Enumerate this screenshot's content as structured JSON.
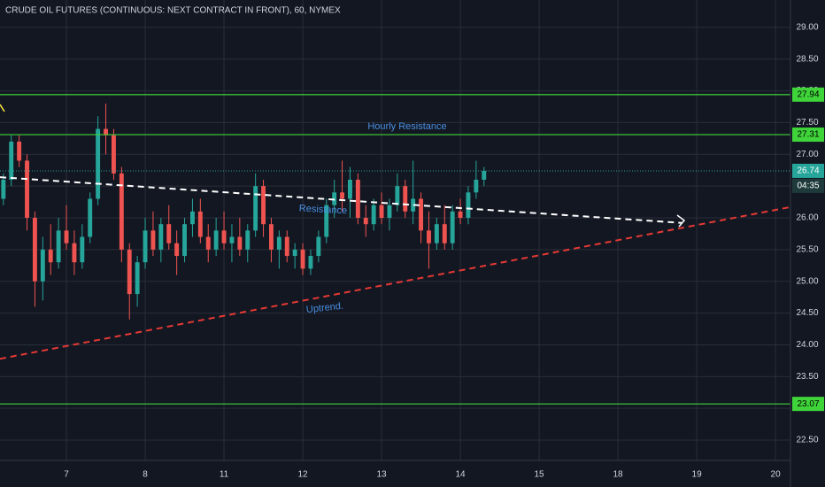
{
  "chart_data": {
    "type": "candlestick",
    "title": "CRUDE OIL FUTURES (CONTINUOUS: NEXT CONTRACT IN FRONT), 60, NYMEX",
    "x": [
      0.2,
      0.3,
      0.4,
      0.5,
      0.6,
      0.7,
      0.8,
      0.9,
      1.0,
      1.1,
      1.2,
      1.3,
      1.4,
      1.5,
      1.6,
      1.7,
      1.8,
      1.9,
      2.0,
      2.1,
      2.2,
      2.3,
      2.4,
      2.5,
      2.6,
      2.7,
      2.8,
      2.9,
      3.0,
      3.1,
      3.2,
      3.3,
      3.4,
      3.5,
      3.6,
      3.7,
      3.8,
      3.9,
      4.0,
      4.1,
      4.2,
      4.3,
      4.4,
      4.5,
      4.6,
      4.7,
      4.8,
      4.9,
      5.0,
      5.1,
      5.2,
      5.3,
      5.4,
      5.5,
      5.6,
      5.7,
      5.8,
      5.9,
      6.0,
      6.1,
      6.2,
      6.3
    ],
    "open": [
      26.3,
      26.6,
      27.2,
      26.9,
      26.0,
      25.0,
      25.5,
      25.3,
      25.8,
      25.6,
      25.3,
      25.7,
      26.3,
      27.4,
      27.3,
      26.7,
      25.5,
      24.8,
      25.3,
      25.8,
      25.5,
      25.9,
      25.6,
      25.4,
      25.9,
      26.1,
      25.7,
      25.5,
      25.8,
      25.6,
      25.7,
      25.5,
      25.8,
      26.5,
      25.9,
      25.5,
      25.7,
      25.4,
      25.5,
      25.2,
      25.4,
      25.7,
      26.2,
      26.4,
      26.3,
      26.6,
      26.0,
      25.9,
      26.2,
      26.0,
      26.2,
      26.5,
      26.1,
      26.3,
      25.8,
      25.6,
      25.9,
      25.6,
      26.1,
      26.0,
      26.4,
      26.6
    ],
    "high": [
      26.7,
      27.3,
      27.3,
      27.0,
      26.1,
      25.7,
      25.9,
      26.0,
      26.2,
      25.8,
      25.9,
      26.4,
      27.6,
      27.8,
      27.4,
      26.8,
      25.6,
      25.4,
      26.0,
      26.1,
      26.0,
      26.2,
      25.8,
      26.0,
      26.3,
      26.3,
      25.9,
      26.0,
      26.1,
      25.9,
      26.0,
      25.9,
      26.7,
      26.6,
      26.0,
      25.8,
      25.8,
      25.6,
      25.6,
      25.5,
      25.8,
      26.3,
      26.6,
      26.9,
      26.8,
      26.7,
      26.2,
      26.3,
      26.4,
      26.3,
      26.7,
      26.6,
      26.9,
      26.4,
      26.1,
      26.0,
      26.2,
      26.2,
      26.3,
      26.5,
      26.9,
      26.8
    ],
    "low": [
      26.2,
      26.5,
      26.8,
      25.8,
      24.6,
      24.7,
      25.1,
      25.2,
      25.5,
      25.1,
      25.2,
      25.6,
      26.2,
      27.0,
      26.6,
      25.3,
      24.4,
      24.6,
      25.2,
      25.4,
      25.3,
      25.5,
      25.1,
      25.3,
      25.7,
      25.6,
      25.3,
      25.4,
      25.5,
      25.3,
      25.4,
      25.3,
      25.7,
      25.7,
      25.3,
      25.2,
      25.3,
      25.2,
      25.1,
      25.1,
      25.3,
      25.6,
      26.0,
      26.1,
      26.0,
      25.9,
      25.7,
      25.8,
      25.9,
      25.8,
      26.1,
      26.0,
      25.9,
      25.6,
      25.2,
      25.5,
      25.5,
      25.5,
      25.9,
      25.9,
      26.3,
      26.5
    ],
    "close": [
      26.6,
      27.2,
      26.9,
      26.0,
      25.0,
      25.5,
      25.3,
      25.8,
      25.6,
      25.3,
      25.7,
      26.3,
      27.4,
      27.3,
      26.7,
      25.5,
      24.8,
      25.3,
      25.8,
      25.5,
      25.9,
      25.6,
      25.4,
      25.9,
      26.1,
      25.7,
      25.5,
      25.8,
      25.6,
      25.7,
      25.5,
      25.8,
      26.5,
      25.9,
      25.5,
      25.7,
      25.4,
      25.5,
      25.2,
      25.4,
      25.7,
      26.2,
      26.4,
      26.3,
      26.6,
      26.0,
      25.9,
      26.2,
      26.0,
      26.2,
      26.5,
      26.1,
      26.3,
      25.8,
      25.6,
      25.9,
      25.6,
      26.1,
      26.0,
      26.4,
      26.6,
      26.74
    ],
    "up_color": "#26a69a",
    "down_color": "#ef5350",
    "xlim": [
      0.157,
      10.19
    ],
    "xticks": [
      {
        "value": 1,
        "label": "7"
      },
      {
        "value": 2,
        "label": "8"
      },
      {
        "value": 3,
        "label": "11"
      },
      {
        "value": 4,
        "label": "12"
      },
      {
        "value": 5,
        "label": "13"
      },
      {
        "value": 6,
        "label": "14"
      },
      {
        "value": 7,
        "label": "15"
      },
      {
        "value": 8,
        "label": "18"
      },
      {
        "value": 9,
        "label": "19"
      },
      {
        "value": 10,
        "label": "20"
      }
    ],
    "ylim": [
      22.18,
      29.43
    ],
    "yticks": [
      {
        "value": 22.5,
        "label": "22.50"
      },
      {
        "value": 23,
        "label": "23.00"
      },
      {
        "value": 23.5,
        "label": "23.50"
      },
      {
        "value": 24,
        "label": "24.00"
      },
      {
        "value": 24.5,
        "label": "24.50"
      },
      {
        "value": 25,
        "label": "25.00"
      },
      {
        "value": 25.5,
        "label": "25.50"
      },
      {
        "value": 26,
        "label": "26.00"
      },
      {
        "value": 26.5,
        "label": "26.50"
      },
      {
        "value": 27,
        "label": "27.00"
      },
      {
        "value": 27.5,
        "label": "27.50"
      },
      {
        "value": 28,
        "label": "28.00"
      },
      {
        "value": 28.5,
        "label": "28.50"
      },
      {
        "value": 29,
        "label": "29.00"
      }
    ],
    "grid": true,
    "levels": [
      {
        "value": 27.94,
        "color": "#3fd43a"
      },
      {
        "value": 27.31,
        "color": "#3fd43a"
      },
      {
        "value": 23.07,
        "color": "#3fd43a"
      }
    ],
    "trendlines": [
      {
        "color": "#ffffff",
        "x": [
          0.157,
          8.81
        ],
        "y": [
          26.64,
          25.92
        ]
      },
      {
        "color": "#e53935",
        "x": [
          0.157,
          10.19
        ],
        "y": [
          23.78,
          26.17
        ]
      }
    ],
    "countdown": "04:35",
    "annotations": [
      "Hourly Resistance",
      "Resistance",
      "Uptrend."
    ]
  }
}
